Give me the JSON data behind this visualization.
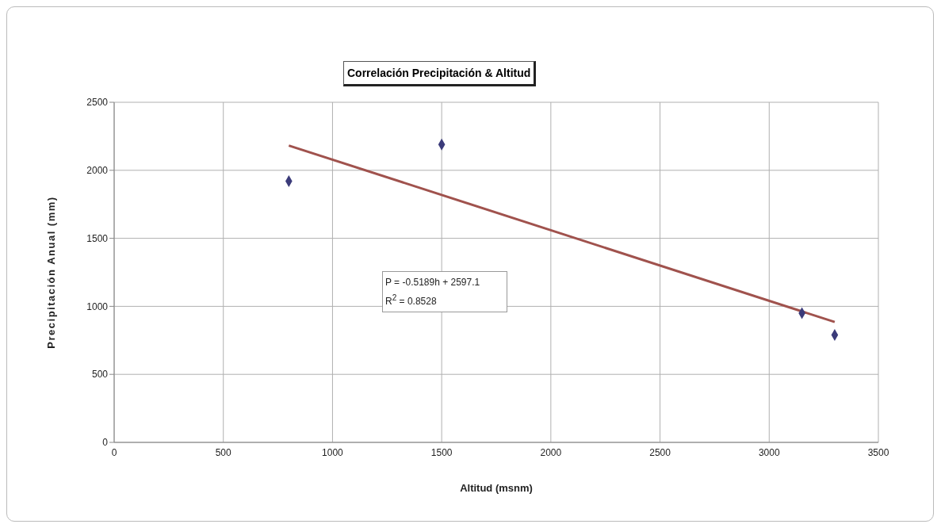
{
  "chart_data": {
    "type": "scatter",
    "title": "Correlación Precipitación & Altitud",
    "xlabel": "Altitud (msnm)",
    "ylabel": "Precipitación Anual (mm)",
    "series": [
      {
        "color": "#3b3b7a",
        "x": [
          800,
          1500,
          3150,
          3300
        ],
        "values": [
          1920,
          2190,
          950,
          790
        ]
      },
      {
        "type": "line",
        "color": "#a0524d",
        "marker": "none",
        "x": [
          800,
          3300
        ],
        "values": [
          2182,
          885
        ]
      }
    ],
    "annotations": [
      "P = -0.5189h + 2597.1",
      "R$^{2}$ = 0.8528"
    ],
    "xlim": [
      0,
      3500
    ],
    "xticks": [
      0,
      500,
      1000,
      1500,
      2000,
      2500,
      3000,
      3500
    ],
    "ylim": [
      0,
      2500
    ],
    "yticks": [
      0,
      500,
      1000,
      1500,
      2000,
      2500
    ],
    "grid": true,
    "marker": "diamond",
    "line_style": "solid"
  }
}
